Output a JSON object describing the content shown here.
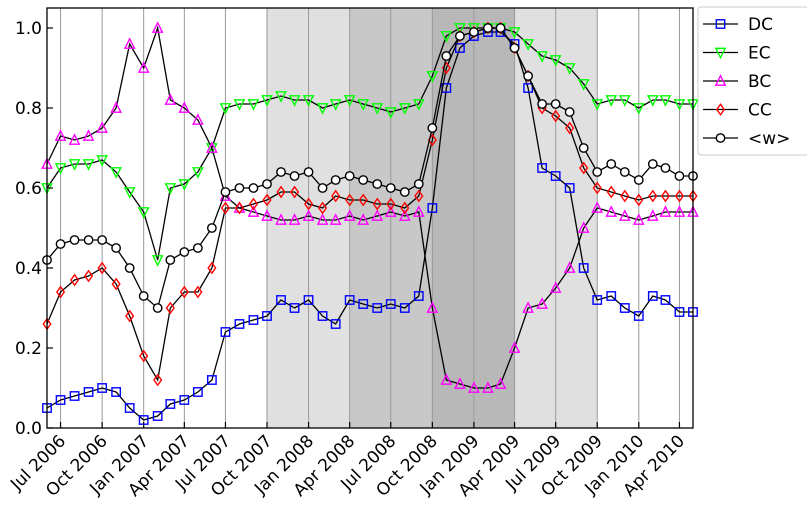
{
  "chart_data": {
    "type": "line",
    "title": "",
    "xlabel": "",
    "ylabel": "",
    "ylim": [
      0.0,
      1.05
    ],
    "xlim": [
      "2006-06-01",
      "2010-05-01"
    ],
    "x_ticks": [
      "Jul 2006",
      "Oct 2006",
      "Jan 2007",
      "Apr 2007",
      "Jul 2007",
      "Oct 2007",
      "Jan 2008",
      "Apr 2008",
      "Jul 2008",
      "Oct 2008",
      "Jan 2009",
      "Apr 2009",
      "Jul 2009",
      "Oct 2009",
      "Jan 2010",
      "Apr 2010"
    ],
    "x_tick_dates": [
      "2006-07-01",
      "2006-10-01",
      "2007-01-01",
      "2007-04-01",
      "2007-07-01",
      "2007-10-01",
      "2008-01-01",
      "2008-04-01",
      "2008-07-01",
      "2008-10-01",
      "2009-01-01",
      "2009-04-01",
      "2009-07-01",
      "2009-10-01",
      "2010-01-01",
      "2010-04-01"
    ],
    "y_ticks": [
      "0.0",
      "0.2",
      "0.4",
      "0.6",
      "0.8",
      "1.0"
    ],
    "y_tick_values": [
      0.0,
      0.2,
      0.4,
      0.6,
      0.8,
      1.0
    ],
    "grid": "vertical lines at x ticks",
    "legend_position": "outside top-right",
    "shaded_regions": [
      {
        "start": "2007-10-01",
        "end": "2008-04-01",
        "color": "#e0e0e0"
      },
      {
        "start": "2009-04-01",
        "end": "2009-10-01",
        "color": "#e0e0e0"
      },
      {
        "start": "2008-04-01",
        "end": "2008-10-01",
        "color": "#c8c8c8"
      },
      {
        "start": "2008-10-01",
        "end": "2009-04-01",
        "color": "#b8b8b8"
      }
    ],
    "series": [
      {
        "name": "DC",
        "color": "#0000ff",
        "marker": "square",
        "points": [
          [
            "2006-06-01",
            0.05
          ],
          [
            "2006-07-01",
            0.07
          ],
          [
            "2006-08-01",
            0.08
          ],
          [
            "2006-09-01",
            0.09
          ],
          [
            "2006-10-01",
            0.1
          ],
          [
            "2006-11-01",
            0.09
          ],
          [
            "2006-12-01",
            0.05
          ],
          [
            "2007-01-01",
            0.02
          ],
          [
            "2007-02-01",
            0.03
          ],
          [
            "2007-03-01",
            0.06
          ],
          [
            "2007-04-01",
            0.07
          ],
          [
            "2007-05-01",
            0.09
          ],
          [
            "2007-06-01",
            0.12
          ],
          [
            "2007-07-01",
            0.24
          ],
          [
            "2007-08-01",
            0.26
          ],
          [
            "2007-09-01",
            0.27
          ],
          [
            "2007-10-01",
            0.28
          ],
          [
            "2007-11-01",
            0.32
          ],
          [
            "2007-12-01",
            0.3
          ],
          [
            "2008-01-01",
            0.32
          ],
          [
            "2008-02-01",
            0.28
          ],
          [
            "2008-03-01",
            0.26
          ],
          [
            "2008-04-01",
            0.32
          ],
          [
            "2008-05-01",
            0.31
          ],
          [
            "2008-06-01",
            0.3
          ],
          [
            "2008-07-01",
            0.31
          ],
          [
            "2008-08-01",
            0.3
          ],
          [
            "2008-09-01",
            0.33
          ],
          [
            "2008-10-01",
            0.55
          ],
          [
            "2008-11-01",
            0.85
          ],
          [
            "2008-12-01",
            0.95
          ],
          [
            "2009-01-01",
            0.98
          ],
          [
            "2009-02-01",
            0.99
          ],
          [
            "2009-03-01",
            0.99
          ],
          [
            "2009-04-01",
            0.96
          ],
          [
            "2009-05-01",
            0.85
          ],
          [
            "2009-06-01",
            0.65
          ],
          [
            "2009-07-01",
            0.63
          ],
          [
            "2009-08-01",
            0.6
          ],
          [
            "2009-09-01",
            0.4
          ],
          [
            "2009-10-01",
            0.32
          ],
          [
            "2009-11-01",
            0.33
          ],
          [
            "2009-12-01",
            0.3
          ],
          [
            "2010-01-01",
            0.28
          ],
          [
            "2010-02-01",
            0.33
          ],
          [
            "2010-03-01",
            0.32
          ],
          [
            "2010-04-01",
            0.29
          ],
          [
            "2010-05-01",
            0.29
          ]
        ]
      },
      {
        "name": "EC",
        "color": "#00ff00",
        "marker": "triangle-down",
        "points": [
          [
            "2006-06-01",
            0.6
          ],
          [
            "2006-07-01",
            0.65
          ],
          [
            "2006-08-01",
            0.66
          ],
          [
            "2006-09-01",
            0.66
          ],
          [
            "2006-10-01",
            0.67
          ],
          [
            "2006-11-01",
            0.64
          ],
          [
            "2006-12-01",
            0.59
          ],
          [
            "2007-01-01",
            0.54
          ],
          [
            "2007-02-01",
            0.42
          ],
          [
            "2007-03-01",
            0.6
          ],
          [
            "2007-04-01",
            0.61
          ],
          [
            "2007-05-01",
            0.64
          ],
          [
            "2007-06-01",
            0.7
          ],
          [
            "2007-07-01",
            0.8
          ],
          [
            "2007-08-01",
            0.81
          ],
          [
            "2007-09-01",
            0.81
          ],
          [
            "2007-10-01",
            0.82
          ],
          [
            "2007-11-01",
            0.83
          ],
          [
            "2007-12-01",
            0.82
          ],
          [
            "2008-01-01",
            0.82
          ],
          [
            "2008-02-01",
            0.8
          ],
          [
            "2008-03-01",
            0.81
          ],
          [
            "2008-04-01",
            0.82
          ],
          [
            "2008-05-01",
            0.81
          ],
          [
            "2008-06-01",
            0.8
          ],
          [
            "2008-07-01",
            0.79
          ],
          [
            "2008-08-01",
            0.8
          ],
          [
            "2008-09-01",
            0.81
          ],
          [
            "2008-10-01",
            0.88
          ],
          [
            "2008-11-01",
            0.98
          ],
          [
            "2008-12-01",
            1.0
          ],
          [
            "2009-01-01",
            1.0
          ],
          [
            "2009-02-01",
            1.0
          ],
          [
            "2009-03-01",
            1.0
          ],
          [
            "2009-04-01",
            0.99
          ],
          [
            "2009-05-01",
            0.96
          ],
          [
            "2009-06-01",
            0.93
          ],
          [
            "2009-07-01",
            0.92
          ],
          [
            "2009-08-01",
            0.9
          ],
          [
            "2009-09-01",
            0.86
          ],
          [
            "2009-10-01",
            0.81
          ],
          [
            "2009-11-01",
            0.82
          ],
          [
            "2009-12-01",
            0.82
          ],
          [
            "2010-01-01",
            0.8
          ],
          [
            "2010-02-01",
            0.82
          ],
          [
            "2010-03-01",
            0.82
          ],
          [
            "2010-04-01",
            0.81
          ],
          [
            "2010-05-01",
            0.81
          ]
        ]
      },
      {
        "name": "BC",
        "color": "#ff00ff",
        "marker": "triangle-up",
        "points": [
          [
            "2006-06-01",
            0.66
          ],
          [
            "2006-07-01",
            0.73
          ],
          [
            "2006-08-01",
            0.72
          ],
          [
            "2006-09-01",
            0.73
          ],
          [
            "2006-10-01",
            0.75
          ],
          [
            "2006-11-01",
            0.8
          ],
          [
            "2006-12-01",
            0.96
          ],
          [
            "2007-01-01",
            0.9
          ],
          [
            "2007-02-01",
            1.0
          ],
          [
            "2007-03-01",
            0.82
          ],
          [
            "2007-04-01",
            0.8
          ],
          [
            "2007-05-01",
            0.77
          ],
          [
            "2007-06-01",
            0.7
          ],
          [
            "2007-07-01",
            0.58
          ],
          [
            "2007-08-01",
            0.55
          ],
          [
            "2007-09-01",
            0.54
          ],
          [
            "2007-10-01",
            0.53
          ],
          [
            "2007-11-01",
            0.52
          ],
          [
            "2007-12-01",
            0.52
          ],
          [
            "2008-01-01",
            0.53
          ],
          [
            "2008-02-01",
            0.52
          ],
          [
            "2008-03-01",
            0.52
          ],
          [
            "2008-04-01",
            0.53
          ],
          [
            "2008-05-01",
            0.52
          ],
          [
            "2008-06-01",
            0.53
          ],
          [
            "2008-07-01",
            0.54
          ],
          [
            "2008-08-01",
            0.53
          ],
          [
            "2008-09-01",
            0.54
          ],
          [
            "2008-10-01",
            0.3
          ],
          [
            "2008-11-01",
            0.12
          ],
          [
            "2008-12-01",
            0.11
          ],
          [
            "2009-01-01",
            0.1
          ],
          [
            "2009-02-01",
            0.1
          ],
          [
            "2009-03-01",
            0.11
          ],
          [
            "2009-04-01",
            0.2
          ],
          [
            "2009-05-01",
            0.3
          ],
          [
            "2009-06-01",
            0.31
          ],
          [
            "2009-07-01",
            0.35
          ],
          [
            "2009-08-01",
            0.4
          ],
          [
            "2009-09-01",
            0.5
          ],
          [
            "2009-10-01",
            0.55
          ],
          [
            "2009-11-01",
            0.54
          ],
          [
            "2009-12-01",
            0.53
          ],
          [
            "2010-01-01",
            0.52
          ],
          [
            "2010-02-01",
            0.53
          ],
          [
            "2010-03-01",
            0.54
          ],
          [
            "2010-04-01",
            0.54
          ],
          [
            "2010-05-01",
            0.54
          ]
        ]
      },
      {
        "name": "CC",
        "color": "#ff0000",
        "marker": "diamond",
        "points": [
          [
            "2006-06-01",
            0.26
          ],
          [
            "2006-07-01",
            0.34
          ],
          [
            "2006-08-01",
            0.37
          ],
          [
            "2006-09-01",
            0.38
          ],
          [
            "2006-10-01",
            0.4
          ],
          [
            "2006-11-01",
            0.36
          ],
          [
            "2006-12-01",
            0.28
          ],
          [
            "2007-01-01",
            0.18
          ],
          [
            "2007-02-01",
            0.12
          ],
          [
            "2007-03-01",
            0.3
          ],
          [
            "2007-04-01",
            0.34
          ],
          [
            "2007-05-01",
            0.34
          ],
          [
            "2007-06-01",
            0.4
          ],
          [
            "2007-07-01",
            0.55
          ],
          [
            "2007-08-01",
            0.55
          ],
          [
            "2007-09-01",
            0.56
          ],
          [
            "2007-10-01",
            0.57
          ],
          [
            "2007-11-01",
            0.59
          ],
          [
            "2007-12-01",
            0.59
          ],
          [
            "2008-01-01",
            0.56
          ],
          [
            "2008-02-01",
            0.55
          ],
          [
            "2008-03-01",
            0.58
          ],
          [
            "2008-04-01",
            0.57
          ],
          [
            "2008-05-01",
            0.57
          ],
          [
            "2008-06-01",
            0.56
          ],
          [
            "2008-07-01",
            0.56
          ],
          [
            "2008-08-01",
            0.55
          ],
          [
            "2008-09-01",
            0.58
          ],
          [
            "2008-10-01",
            0.72
          ],
          [
            "2008-11-01",
            0.9
          ],
          [
            "2008-12-01",
            0.98
          ],
          [
            "2009-01-01",
            0.99
          ],
          [
            "2009-02-01",
            1.0
          ],
          [
            "2009-03-01",
            1.0
          ],
          [
            "2009-04-01",
            0.95
          ],
          [
            "2009-05-01",
            0.88
          ],
          [
            "2009-06-01",
            0.8
          ],
          [
            "2009-07-01",
            0.78
          ],
          [
            "2009-08-01",
            0.75
          ],
          [
            "2009-09-01",
            0.65
          ],
          [
            "2009-10-01",
            0.6
          ],
          [
            "2009-11-01",
            0.59
          ],
          [
            "2009-12-01",
            0.58
          ],
          [
            "2010-01-01",
            0.57
          ],
          [
            "2010-02-01",
            0.58
          ],
          [
            "2010-03-01",
            0.58
          ],
          [
            "2010-04-01",
            0.58
          ],
          [
            "2010-05-01",
            0.58
          ]
        ]
      },
      {
        "name": "<w>",
        "color": "#000000",
        "marker": "circle",
        "points": [
          [
            "2006-06-01",
            0.42
          ],
          [
            "2006-07-01",
            0.46
          ],
          [
            "2006-08-01",
            0.47
          ],
          [
            "2006-09-01",
            0.47
          ],
          [
            "2006-10-01",
            0.47
          ],
          [
            "2006-11-01",
            0.45
          ],
          [
            "2006-12-01",
            0.4
          ],
          [
            "2007-01-01",
            0.33
          ],
          [
            "2007-02-01",
            0.3
          ],
          [
            "2007-03-01",
            0.42
          ],
          [
            "2007-04-01",
            0.44
          ],
          [
            "2007-05-01",
            0.45
          ],
          [
            "2007-06-01",
            0.5
          ],
          [
            "2007-07-01",
            0.59
          ],
          [
            "2007-08-01",
            0.6
          ],
          [
            "2007-09-01",
            0.6
          ],
          [
            "2007-10-01",
            0.61
          ],
          [
            "2007-11-01",
            0.64
          ],
          [
            "2007-12-01",
            0.63
          ],
          [
            "2008-01-01",
            0.64
          ],
          [
            "2008-02-01",
            0.6
          ],
          [
            "2008-03-01",
            0.62
          ],
          [
            "2008-04-01",
            0.63
          ],
          [
            "2008-05-01",
            0.62
          ],
          [
            "2008-06-01",
            0.61
          ],
          [
            "2008-07-01",
            0.6
          ],
          [
            "2008-08-01",
            0.59
          ],
          [
            "2008-09-01",
            0.61
          ],
          [
            "2008-10-01",
            0.75
          ],
          [
            "2008-11-01",
            0.93
          ],
          [
            "2008-12-01",
            0.98
          ],
          [
            "2009-01-01",
            0.99
          ],
          [
            "2009-02-01",
            1.0
          ],
          [
            "2009-03-01",
            1.0
          ],
          [
            "2009-04-01",
            0.95
          ],
          [
            "2009-05-01",
            0.88
          ],
          [
            "2009-06-01",
            0.81
          ],
          [
            "2009-07-01",
            0.81
          ],
          [
            "2009-08-01",
            0.79
          ],
          [
            "2009-09-01",
            0.7
          ],
          [
            "2009-10-01",
            0.64
          ],
          [
            "2009-11-01",
            0.66
          ],
          [
            "2009-12-01",
            0.64
          ],
          [
            "2010-01-01",
            0.62
          ],
          [
            "2010-02-01",
            0.66
          ],
          [
            "2010-03-01",
            0.65
          ],
          [
            "2010-04-01",
            0.63
          ],
          [
            "2010-05-01",
            0.63
          ]
        ]
      }
    ]
  }
}
